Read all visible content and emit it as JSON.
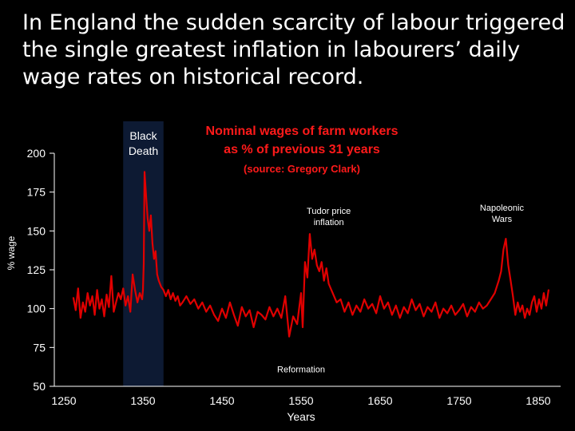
{
  "slide": {
    "title_lines": [
      "In England the sudden scarcity of labour triggered",
      "the single greatest inflation in labourers’ daily",
      "wage rates on historical record."
    ]
  },
  "chart_data": {
    "type": "line",
    "title_lines": [
      "Nominal wages of farm workers",
      "as % of previous 31 years"
    ],
    "subtitle": "(source: Gregory Clark)",
    "xlabel": "Years",
    "ylabel": "% wage",
    "xlim": [
      1250,
      1870
    ],
    "ylim": [
      50,
      200
    ],
    "xticks": [
      1250,
      1350,
      1450,
      1550,
      1650,
      1750,
      1850
    ],
    "yticks": [
      200,
      175,
      150,
      125,
      100,
      75,
      50
    ],
    "color": "#e00000",
    "band": {
      "label_lines": [
        "Black",
        "Death"
      ],
      "x_start": 1325,
      "x_end": 1376,
      "color": "#0d1a33"
    },
    "annotations": [
      {
        "lines": [
          "Tudor price",
          "inflation"
        ],
        "x": 1585,
        "y": 161
      },
      {
        "lines": [
          "Napoleonic",
          "Wars"
        ],
        "x": 1804,
        "y": 163
      },
      {
        "lines": [
          "Reformation"
        ],
        "x": 1550,
        "y": 59
      }
    ],
    "series": [
      {
        "x": [
          1262,
          1265,
          1268,
          1271,
          1274,
          1277,
          1280,
          1283,
          1286,
          1289,
          1292,
          1295,
          1298,
          1301,
          1304,
          1307,
          1310,
          1313,
          1316,
          1319,
          1322,
          1325,
          1328,
          1331,
          1334,
          1337,
          1340,
          1343,
          1346,
          1349,
          1350,
          1351,
          1352,
          1354,
          1356,
          1358,
          1360,
          1362,
          1364,
          1366,
          1368,
          1370,
          1373,
          1376,
          1379,
          1382,
          1385,
          1388,
          1391,
          1394,
          1397,
          1400,
          1405,
          1410,
          1415,
          1420,
          1425,
          1430,
          1435,
          1440,
          1445,
          1450,
          1455,
          1460,
          1465,
          1470,
          1475,
          1480,
          1485,
          1490,
          1495,
          1500,
          1505,
          1510,
          1515,
          1520,
          1525,
          1530,
          1535,
          1540,
          1545,
          1548,
          1550,
          1552,
          1555,
          1558,
          1561,
          1564,
          1567,
          1570,
          1573,
          1576,
          1579,
          1582,
          1585,
          1590,
          1595,
          1600,
          1605,
          1610,
          1615,
          1620,
          1625,
          1630,
          1635,
          1640,
          1645,
          1650,
          1655,
          1660,
          1665,
          1670,
          1675,
          1680,
          1685,
          1690,
          1695,
          1700,
          1705,
          1710,
          1715,
          1720,
          1725,
          1730,
          1735,
          1740,
          1745,
          1750,
          1755,
          1760,
          1765,
          1770,
          1775,
          1780,
          1785,
          1790,
          1795,
          1800,
          1803,
          1806,
          1809,
          1812,
          1815,
          1818,
          1821,
          1824,
          1827,
          1830,
          1833,
          1836,
          1839,
          1842,
          1845,
          1848,
          1851,
          1854,
          1857,
          1860,
          1863
        ],
        "y": [
          107,
          99,
          113,
          94,
          104,
          98,
          110,
          102,
          108,
          96,
          112,
          100,
          106,
          95,
          109,
          101,
          121,
          98,
          104,
          110,
          106,
          113,
          102,
          108,
          98,
          122,
          112,
          104,
          110,
          106,
          112,
          129,
          188,
          172,
          158,
          150,
          160,
          142,
          132,
          137,
          122,
          118,
          114,
          112,
          108,
          112,
          106,
          110,
          105,
          108,
          102,
          104,
          108,
          103,
          106,
          100,
          104,
          98,
          102,
          96,
          92,
          100,
          94,
          104,
          96,
          89,
          101,
          95,
          99,
          88,
          98,
          96,
          93,
          101,
          95,
          100,
          94,
          108,
          82,
          95,
          90,
          102,
          110,
          88,
          130,
          120,
          148,
          132,
          138,
          128,
          124,
          130,
          118,
          126,
          116,
          110,
          104,
          106,
          98,
          104,
          96,
          102,
          98,
          106,
          100,
          103,
          97,
          108,
          100,
          104,
          96,
          102,
          94,
          101,
          97,
          106,
          99,
          103,
          95,
          101,
          98,
          104,
          94,
          100,
          97,
          102,
          96,
          99,
          103,
          95,
          101,
          98,
          104,
          100,
          102,
          106,
          110,
          118,
          124,
          138,
          145,
          128,
          118,
          108,
          96,
          104,
          98,
          102,
          94,
          100,
          96,
          104,
          108,
          98,
          106,
          100,
          110,
          102,
          112
        ]
      }
    ]
  }
}
